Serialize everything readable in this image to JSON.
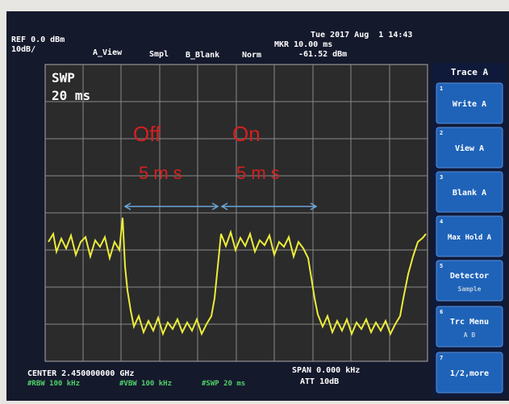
{
  "header": {
    "ref": "REF 0.0 dBm",
    "scale": "10dB/",
    "view": "A_View",
    "detector": "Smpl",
    "blank": "B_Blank",
    "mode": "Norm",
    "marker": "MKR 10.00 ms",
    "marker_level": "-61.52 dBm",
    "datetime": "Tue 2017 Aug  1 14:43"
  },
  "screen": {
    "sweep_label": "SWP",
    "sweep_time": "20 ms"
  },
  "annotations": {
    "off": "Off",
    "on": "On",
    "off_duration": "5 m s",
    "on_duration": "5 m s"
  },
  "softkeys": {
    "title": "Trace A",
    "keys": [
      {
        "number": "1",
        "label": "Write A"
      },
      {
        "number": "2",
        "label": "View A"
      },
      {
        "number": "3",
        "label": "Blank A"
      },
      {
        "number": "4",
        "label": "Max Hold A"
      },
      {
        "number": "5",
        "label": "Detector",
        "sub": "Sample"
      },
      {
        "number": "6",
        "label": "Trc Menu",
        "sub": "A B"
      },
      {
        "number": "7",
        "label": "1/2,more"
      }
    ]
  },
  "footer": {
    "center": "CENTER 2.450000000 GHz",
    "span": "SPAN 0.000 kHz",
    "rbw": "#RBW 100 kHz",
    "vbw": "#VBW 100 kHz",
    "swp": "#SWP 20 ms",
    "att": "ATT 10dB"
  }
}
